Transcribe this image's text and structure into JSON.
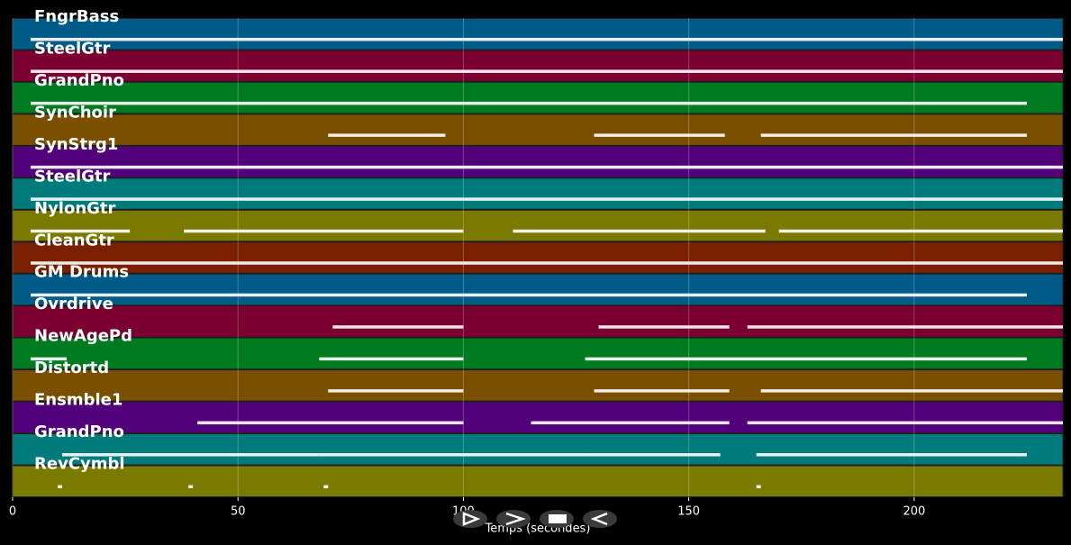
{
  "chart_data": {
    "type": "pianoroll",
    "xlabel": "Temps (secondes)",
    "xlim": [
      0,
      233
    ],
    "xticks": [
      0,
      50,
      100,
      150,
      200
    ],
    "grid": true,
    "series": [
      {
        "name": "FngrBass",
        "color": "#005a88",
        "values": [
          [
            4,
            233
          ]
        ]
      },
      {
        "name": "SteelGtr",
        "color": "#7a0030",
        "values": [
          [
            4,
            233
          ]
        ]
      },
      {
        "name": "GrandPno",
        "color": "#007a20",
        "values": [
          [
            4,
            225
          ]
        ]
      },
      {
        "name": "SynChoir",
        "color": "#7a5000",
        "values": [
          [
            70,
            96
          ],
          [
            129,
            158
          ],
          [
            166,
            225
          ]
        ]
      },
      {
        "name": "SynStrg1",
        "color": "#52007a",
        "values": [
          [
            4,
            233
          ]
        ]
      },
      {
        "name": "SteelGtr",
        "color": "#007a7a",
        "values": [
          [
            4,
            233
          ]
        ]
      },
      {
        "name": "NylonGtr",
        "color": "#7a7a00",
        "values": [
          [
            4,
            26
          ],
          [
            38,
            100
          ],
          [
            111,
            167
          ],
          [
            170,
            233
          ]
        ]
      },
      {
        "name": "CleanGtr",
        "color": "#7a2000",
        "values": [
          [
            4,
            233
          ]
        ]
      },
      {
        "name": "GM Drums",
        "color": "#005a88",
        "values": [
          [
            4,
            225
          ]
        ]
      },
      {
        "name": "Ovrdrive",
        "color": "#7a0030",
        "values": [
          [
            71,
            100
          ],
          [
            130,
            159
          ],
          [
            163,
            233
          ]
        ]
      },
      {
        "name": "NewAgePd",
        "color": "#007a20",
        "values": [
          [
            4,
            12
          ],
          [
            68,
            100
          ],
          [
            127,
            225
          ]
        ]
      },
      {
        "name": "Distortd",
        "color": "#7a5000",
        "values": [
          [
            70,
            100
          ],
          [
            129,
            159
          ],
          [
            166,
            233
          ]
        ]
      },
      {
        "name": "Ensmble1",
        "color": "#52007a",
        "values": [
          [
            41,
            100
          ],
          [
            115,
            159
          ],
          [
            163,
            233
          ]
        ]
      },
      {
        "name": "GrandPno",
        "color": "#007a7a",
        "values": [
          [
            11,
            68
          ],
          [
            68,
            100
          ],
          [
            100,
            128
          ],
          [
            128,
            157
          ],
          [
            165,
            225
          ]
        ]
      },
      {
        "name": "RevCymbl",
        "color": "#7a7a00",
        "values": [
          [
            10,
            11
          ],
          [
            39,
            40
          ],
          [
            69,
            70
          ],
          [
            165,
            166
          ]
        ]
      }
    ]
  }
}
